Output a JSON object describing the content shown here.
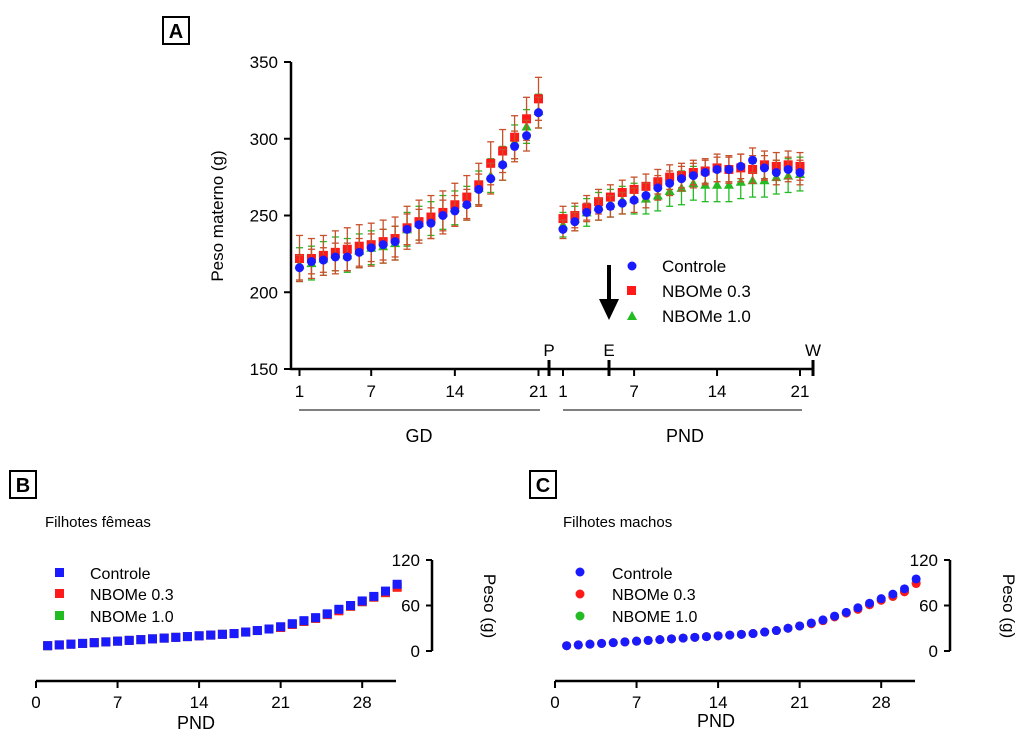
{
  "colors": {
    "controle": "#1a1aff",
    "nbome03": "#ff1a1a",
    "nbome10": "#22bb22",
    "error_a": "#c8502a",
    "axis": "#000000"
  },
  "chart_data": [
    {
      "panel": "A",
      "type": "scatter",
      "ylabel": "Peso materno (g)",
      "ylim": [
        150,
        350
      ],
      "yticks": [
        150,
        200,
        250,
        300,
        350
      ],
      "gd_ticks": [
        1,
        7,
        14,
        21
      ],
      "pnd_ticks": [
        1,
        7,
        14,
        21
      ],
      "markers": {
        "p": "P",
        "e": "E",
        "w": "W"
      },
      "group_labels": {
        "gd": "GD",
        "pnd": "PND"
      },
      "legend": [
        "Controle",
        "NBOMe 0.3",
        "NBOMe 1.0"
      ],
      "gd_days": [
        1,
        2,
        3,
        4,
        5,
        6,
        7,
        8,
        9,
        10,
        11,
        12,
        13,
        14,
        15,
        16,
        17,
        18,
        19,
        20,
        21
      ],
      "pnd_days": [
        1,
        2,
        3,
        4,
        5,
        6,
        7,
        8,
        9,
        10,
        11,
        12,
        13,
        14,
        15,
        16,
        17,
        18,
        19,
        20,
        21
      ],
      "series": [
        {
          "name": "Controle",
          "gd": [
            216,
            220,
            221,
            223,
            223,
            226,
            229,
            231,
            233,
            241,
            244,
            245,
            250,
            253,
            257,
            267,
            274,
            283,
            295,
            302,
            317
          ],
          "pnd": [
            241,
            246,
            252,
            254,
            256,
            258,
            260,
            263,
            268,
            271,
            274,
            276,
            278,
            280,
            280,
            282,
            286,
            281,
            278,
            280,
            278
          ],
          "gd_err": [
            8,
            8,
            8,
            9,
            9,
            9,
            9,
            10,
            10,
            10,
            10,
            10,
            10,
            10,
            10,
            10,
            10,
            10,
            10,
            10,
            10
          ],
          "pnd_err": [
            6,
            6,
            6,
            7,
            7,
            7,
            8,
            8,
            8,
            8,
            8,
            8,
            8,
            8,
            8,
            8,
            8,
            8,
            8,
            8,
            8
          ]
        },
        {
          "name": "NBOMe 0.3",
          "gd": [
            222,
            222,
            224,
            226,
            228,
            230,
            231,
            233,
            235,
            242,
            246,
            249,
            252,
            257,
            262,
            270,
            284,
            292,
            301,
            313,
            326
          ],
          "pnd": [
            248,
            250,
            255,
            259,
            262,
            265,
            267,
            269,
            272,
            275,
            276,
            278,
            279,
            281,
            280,
            281,
            280,
            283,
            282,
            283,
            282
          ],
          "gd_err": [
            15,
            13,
            13,
            14,
            14,
            14,
            14,
            14,
            14,
            14,
            14,
            14,
            14,
            14,
            14,
            14,
            14,
            14,
            14,
            14,
            14
          ],
          "pnd_err": [
            8,
            8,
            8,
            8,
            8,
            8,
            8,
            8,
            8,
            8,
            8,
            8,
            8,
            9,
            9,
            9,
            9,
            9,
            9,
            9,
            9
          ]
        },
        {
          "name": "NBOMe 1.0",
          "gd": [
            218,
            219,
            222,
            225,
            224,
            227,
            229,
            230,
            232,
            241,
            245,
            248,
            252,
            255,
            258,
            268,
            276,
            284,
            298,
            308,
            318
          ],
          "pnd": [
            244,
            248,
            252,
            256,
            258,
            260,
            261,
            261,
            263,
            266,
            268,
            271,
            270,
            270,
            270,
            272,
            273,
            273,
            275,
            276,
            277
          ],
          "gd_err": [
            11,
            11,
            11,
            11,
            11,
            11,
            11,
            11,
            11,
            11,
            11,
            11,
            11,
            11,
            11,
            11,
            11,
            11,
            11,
            11,
            11
          ],
          "pnd_err": [
            8,
            8,
            9,
            9,
            9,
            9,
            10,
            10,
            10,
            10,
            11,
            11,
            11,
            11,
            11,
            11,
            11,
            11,
            11,
            11,
            11
          ]
        }
      ]
    },
    {
      "panel": "B",
      "type": "scatter",
      "title": "Filhotes fêmeas",
      "xlabel": "PND",
      "ylabel": "Peso (g)",
      "xlim": [
        0,
        32
      ],
      "ylim": [
        0,
        120
      ],
      "xticks": [
        0,
        7,
        14,
        21,
        28
      ],
      "yticks": [
        0,
        60,
        120
      ],
      "legend": [
        "Controle",
        "NBOMe 0.3",
        "NBOMe 1.0"
      ],
      "x": [
        1,
        2,
        3,
        4,
        5,
        6,
        7,
        8,
        9,
        10,
        11,
        12,
        13,
        14,
        15,
        16,
        17,
        18,
        19,
        20,
        21,
        22,
        23,
        24,
        25,
        26,
        27,
        28,
        29,
        30,
        31
      ],
      "series": [
        {
          "name": "Controle",
          "values": [
            7,
            8,
            9,
            10,
            11,
            12,
            13,
            14,
            15,
            16,
            17,
            18,
            19,
            20,
            21,
            22,
            23,
            25,
            27,
            29,
            32,
            36,
            40,
            44,
            49,
            55,
            60,
            66,
            72,
            79,
            88
          ]
        },
        {
          "name": "NBOMe 0.3",
          "values": [
            7,
            8,
            9,
            10,
            11,
            12,
            13,
            14,
            15,
            16,
            17,
            18,
            19,
            20,
            21,
            22,
            23,
            25,
            27,
            29,
            31,
            35,
            39,
            43,
            48,
            53,
            59,
            65,
            71,
            77,
            84
          ]
        },
        {
          "name": "NBOMe 1.0",
          "values": [
            7,
            8,
            9,
            10,
            11,
            12,
            13,
            14,
            15,
            16,
            17,
            18,
            19,
            20,
            21,
            22,
            23,
            25,
            27,
            29,
            31,
            35,
            39,
            43,
            48,
            54,
            59,
            65,
            71,
            77,
            85
          ]
        }
      ]
    },
    {
      "panel": "C",
      "type": "scatter",
      "title": "Filhotes machos",
      "xlabel": "PND",
      "ylabel": "Peso (g)",
      "xlim": [
        0,
        32
      ],
      "ylim": [
        0,
        120
      ],
      "xticks": [
        0,
        7,
        14,
        21,
        28
      ],
      "yticks": [
        0,
        60,
        120
      ],
      "legend": [
        "Controle",
        "NBOMe 0.3",
        "NBOME 1.0"
      ],
      "x": [
        1,
        2,
        3,
        4,
        5,
        6,
        7,
        8,
        9,
        10,
        11,
        12,
        13,
        14,
        15,
        16,
        17,
        18,
        19,
        20,
        21,
        22,
        23,
        24,
        25,
        26,
        27,
        28,
        29,
        30,
        31
      ],
      "series": [
        {
          "name": "Controle",
          "values": [
            7,
            8,
            9,
            10,
            11,
            12,
            13,
            14,
            15,
            16,
            17,
            18,
            19,
            20,
            21,
            22,
            23,
            25,
            27,
            30,
            33,
            37,
            41,
            46,
            51,
            57,
            63,
            69,
            75,
            82,
            95
          ]
        },
        {
          "name": "NBOMe 0.3",
          "values": [
            7,
            8,
            9,
            10,
            11,
            12,
            13,
            14,
            15,
            16,
            17,
            18,
            19,
            20,
            21,
            22,
            23,
            25,
            27,
            30,
            33,
            36,
            40,
            45,
            50,
            55,
            61,
            67,
            72,
            78,
            89
          ]
        },
        {
          "name": "NBOME 1.0",
          "values": [
            7,
            8,
            9,
            10,
            11,
            12,
            13,
            14,
            15,
            16,
            17,
            18,
            19,
            20,
            21,
            22,
            23,
            25,
            27,
            30,
            33,
            36,
            40,
            45,
            50,
            55,
            61,
            67,
            72,
            79,
            90
          ]
        }
      ]
    }
  ],
  "panels": {
    "a": "A",
    "b": "B",
    "c": "C"
  }
}
